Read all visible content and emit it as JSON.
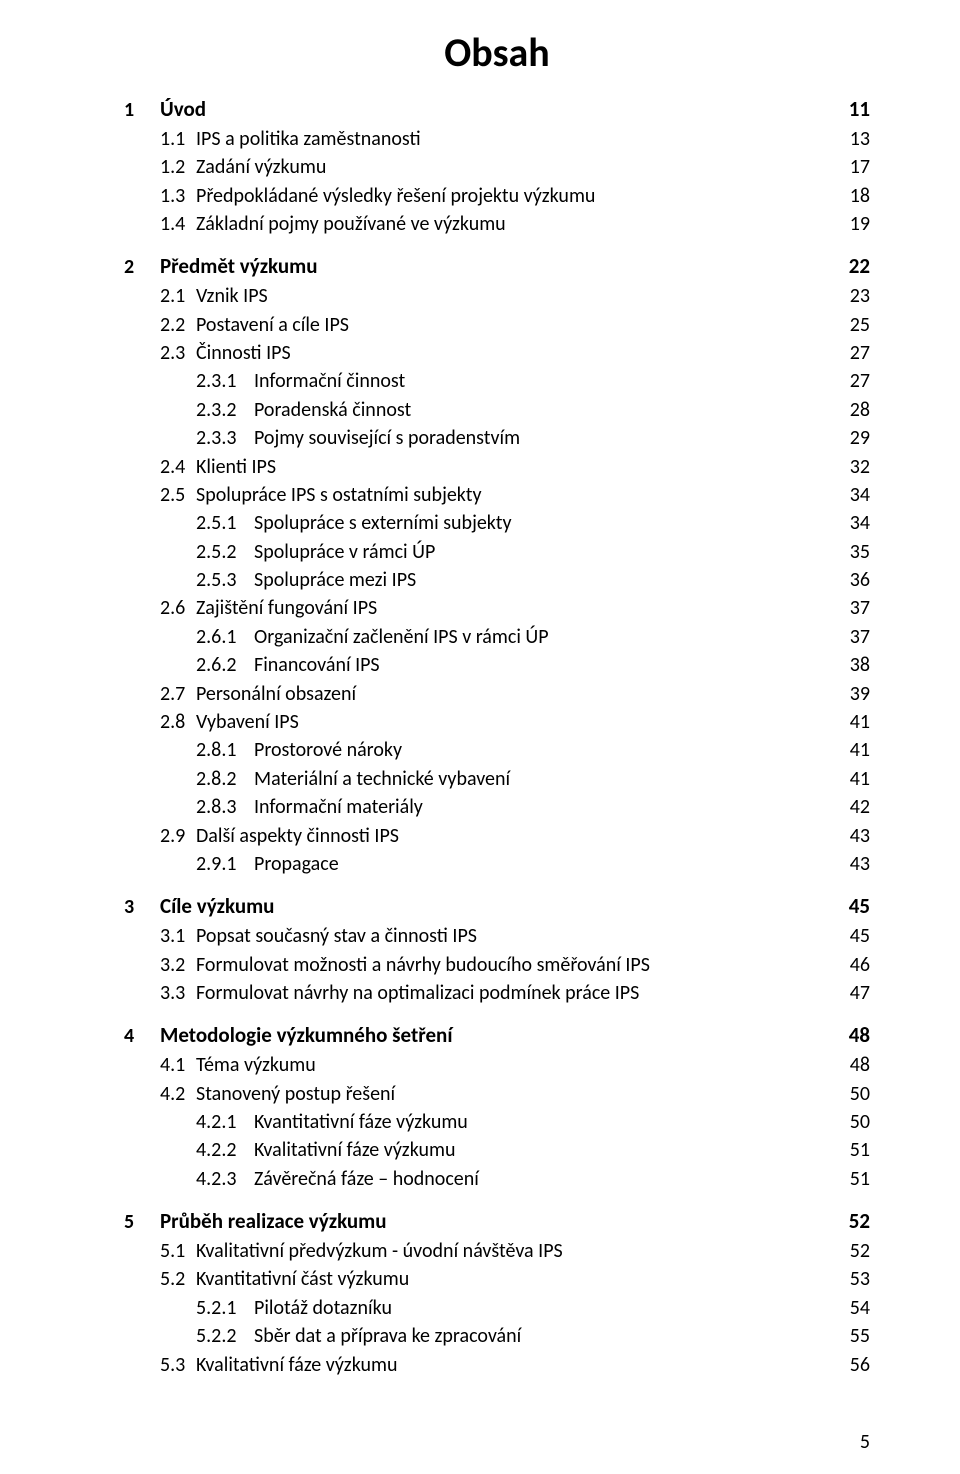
{
  "title": "Obsah",
  "page_number": "5",
  "colors": {
    "text": "#000000",
    "background": "#ffffff"
  },
  "typography": {
    "title_fontsize_pt": 30,
    "lvl1_fontsize_pt": 16,
    "body_fontsize_pt": 15,
    "font_family": "Calibri"
  },
  "toc": [
    {
      "level": 1,
      "num": "1",
      "label": "Úvod",
      "page": "11"
    },
    {
      "level": 2,
      "num": "1.1",
      "label": "IPS a politika zaměstnanosti",
      "page": "13"
    },
    {
      "level": 2,
      "num": "1.2",
      "label": "Zadání výzkumu",
      "page": "17"
    },
    {
      "level": 2,
      "num": "1.3",
      "label": "Předpokládané výsledky řešení projektu výzkumu",
      "page": "18"
    },
    {
      "level": 2,
      "num": "1.4",
      "label": "Základní pojmy používané ve výzkumu",
      "page": "19"
    },
    {
      "level": 1,
      "num": "2",
      "label": "Předmět výzkumu",
      "page": "22"
    },
    {
      "level": 2,
      "num": "2.1",
      "label": "Vznik IPS",
      "page": "23"
    },
    {
      "level": 2,
      "num": "2.2",
      "label": "Postavení a cíle IPS",
      "page": "25"
    },
    {
      "level": 2,
      "num": "2.3",
      "label": "Činnosti IPS",
      "page": "27"
    },
    {
      "level": 3,
      "num": "2.3.1",
      "label": "Informační činnost",
      "page": "27"
    },
    {
      "level": 3,
      "num": "2.3.2",
      "label": "Poradenská činnost",
      "page": "28"
    },
    {
      "level": 3,
      "num": "2.3.3",
      "label": "Pojmy související s poradenstvím",
      "page": "29"
    },
    {
      "level": 2,
      "num": "2.4",
      "label": "Klienti IPS",
      "page": "32"
    },
    {
      "level": 2,
      "num": "2.5",
      "label": "Spolupráce IPS s ostatními subjekty",
      "page": "34"
    },
    {
      "level": 3,
      "num": "2.5.1",
      "label": "Spolupráce s externími subjekty",
      "page": "34"
    },
    {
      "level": 3,
      "num": "2.5.2",
      "label": "Spolupráce v rámci ÚP",
      "page": "35"
    },
    {
      "level": 3,
      "num": "2.5.3",
      "label": "Spolupráce mezi IPS",
      "page": "36"
    },
    {
      "level": 2,
      "num": "2.6",
      "label": "Zajištění fungování IPS",
      "page": "37"
    },
    {
      "level": 3,
      "num": "2.6.1",
      "label": "Organizační začlenění IPS v rámci ÚP",
      "page": "37"
    },
    {
      "level": 3,
      "num": "2.6.2",
      "label": "Financování IPS",
      "page": "38"
    },
    {
      "level": 2,
      "num": "2.7",
      "label": "Personální obsazení",
      "page": "39"
    },
    {
      "level": 2,
      "num": "2.8",
      "label": "Vybavení IPS",
      "page": "41"
    },
    {
      "level": 3,
      "num": "2.8.1",
      "label": "Prostorové nároky",
      "page": "41"
    },
    {
      "level": 3,
      "num": "2.8.2",
      "label": "Materiální a technické vybavení",
      "page": "41"
    },
    {
      "level": 3,
      "num": "2.8.3",
      "label": "Informační materiály",
      "page": "42"
    },
    {
      "level": 2,
      "num": "2.9",
      "label": "Další aspekty činnosti IPS",
      "page": "43"
    },
    {
      "level": 3,
      "num": "2.9.1",
      "label": "Propagace",
      "page": "43"
    },
    {
      "level": 1,
      "num": "3",
      "label": "Cíle výzkumu",
      "page": "45"
    },
    {
      "level": 2,
      "num": "3.1",
      "label": "Popsat současný stav a činnosti IPS",
      "page": "45"
    },
    {
      "level": 2,
      "num": "3.2",
      "label": "Formulovat možnosti a návrhy budoucího směřování IPS",
      "page": "46"
    },
    {
      "level": 2,
      "num": "3.3",
      "label": "Formulovat návrhy na optimalizaci podmínek práce IPS",
      "page": "47"
    },
    {
      "level": 1,
      "num": "4",
      "label": "Metodologie výzkumného šetření",
      "page": "48"
    },
    {
      "level": 2,
      "num": "4.1",
      "label": "Téma výzkumu",
      "page": "48"
    },
    {
      "level": 2,
      "num": "4.2",
      "label": "Stanovený postup řešení",
      "page": "50"
    },
    {
      "level": 3,
      "num": "4.2.1",
      "label": "Kvantitativní fáze výzkumu",
      "page": "50"
    },
    {
      "level": 3,
      "num": "4.2.2",
      "label": "Kvalitativní fáze výzkumu",
      "page": "51"
    },
    {
      "level": 3,
      "num": "4.2.3",
      "label": "Závěrečná fáze – hodnocení",
      "page": "51"
    },
    {
      "level": 1,
      "num": "5",
      "label": "Průběh realizace výzkumu",
      "page": "52"
    },
    {
      "level": 2,
      "num": "5.1",
      "label": "Kvalitativní předvýzkum - úvodní návštěva IPS",
      "page": "52"
    },
    {
      "level": 2,
      "num": "5.2",
      "label": "Kvantitativní část výzkumu",
      "page": "53"
    },
    {
      "level": 3,
      "num": "5.2.1",
      "label": "Pilotáž dotazníku",
      "page": "54"
    },
    {
      "level": 3,
      "num": "5.2.2",
      "label": "Sběr dat a příprava ke zpracování",
      "page": "55"
    },
    {
      "level": 2,
      "num": "5.3",
      "label": "Kvalitativní fáze výzkumu",
      "page": "56"
    }
  ]
}
